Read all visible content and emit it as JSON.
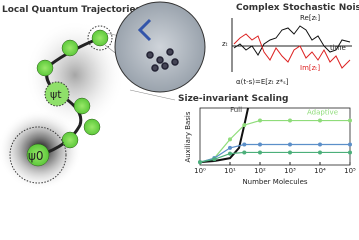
{
  "panels": {
    "trajectories": {
      "title": "Local Quantum Trajectories",
      "psi_t": "ψt",
      "psi_0": "ψ0"
    },
    "noise": {
      "title": "Complex Stochastic Noise",
      "re": "Re[zₜ]",
      "im": "Im[zₜ]",
      "z": "zₜ",
      "time": "time",
      "formula": "α(t-s)=E[zₜ z*ₛ]"
    }
  },
  "chart_data": {
    "type": "line",
    "title": "Size-invariant Scaling",
    "xlabel": "Number Molecules",
    "ylabel": "Auxiliary Basis",
    "log_x": true,
    "xlim": [
      1,
      100000
    ],
    "ylim": [
      0,
      1
    ],
    "xticks": [
      {
        "value": 1,
        "label": "10⁰"
      },
      {
        "value": 10,
        "label": "10¹"
      },
      {
        "value": 100,
        "label": "10²"
      },
      {
        "value": 1000,
        "label": "10³"
      },
      {
        "value": 10000,
        "label": "10⁴"
      },
      {
        "value": 100000,
        "label": "10⁵"
      }
    ],
    "series": [
      {
        "name": "Full",
        "color": "#111111",
        "markers": false,
        "x": [
          1,
          3,
          10,
          20,
          30,
          40
        ],
        "values": [
          0.05,
          0.07,
          0.12,
          0.3,
          0.7,
          1.0
        ]
      },
      {
        "name": "Adaptive",
        "color": "#8fdc7a",
        "markers": true,
        "x": [
          1,
          3,
          10,
          30,
          100,
          1000,
          10000,
          100000
        ],
        "values": [
          0.05,
          0.12,
          0.45,
          0.7,
          0.78,
          0.78,
          0.78,
          0.78
        ]
      },
      {
        "color": "#5b8fc9",
        "markers": true,
        "x": [
          1,
          3,
          10,
          30,
          100,
          1000,
          10000,
          100000
        ],
        "values": [
          0.05,
          0.12,
          0.3,
          0.36,
          0.36,
          0.36,
          0.36,
          0.36
        ]
      },
      {
        "color": "#4caf7a",
        "markers": true,
        "x": [
          1,
          3,
          10,
          30,
          100,
          1000,
          10000,
          100000
        ],
        "values": [
          0.05,
          0.1,
          0.2,
          0.22,
          0.22,
          0.22,
          0.22,
          0.22
        ]
      }
    ]
  }
}
